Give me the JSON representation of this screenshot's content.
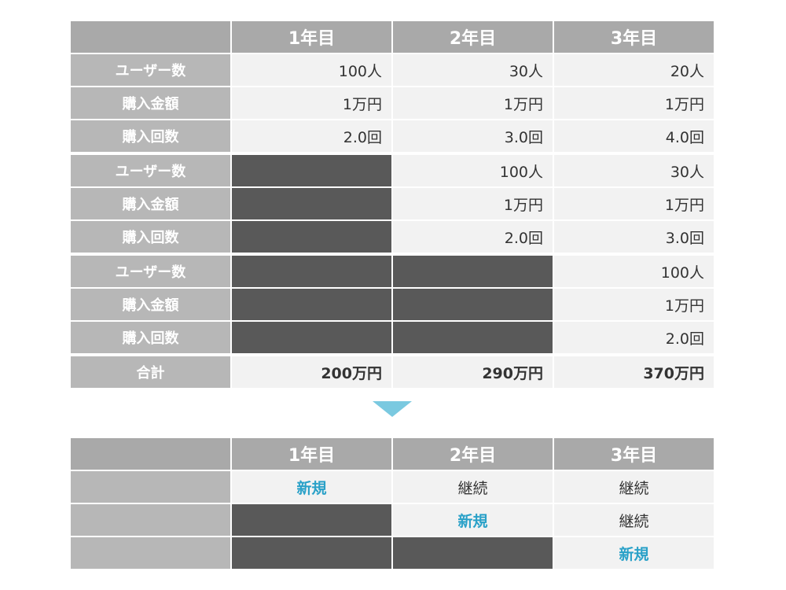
{
  "years": [
    "1年目",
    "2年目",
    "3年目"
  ],
  "labels": {
    "users": "ユーザー数",
    "amount": "購入金額",
    "count": "購入回数",
    "total": "合計"
  },
  "cohorts": [
    {
      "users": [
        "100人",
        "30人",
        "20人"
      ],
      "amount": [
        "1万円",
        "1万円",
        "1万円"
      ],
      "count": [
        "2.0回",
        "3.0回",
        "4.0回"
      ]
    },
    {
      "users": [
        "",
        "100人",
        "30人"
      ],
      "amount": [
        "",
        "1万円",
        "1万円"
      ],
      "count": [
        "",
        "2.0回",
        "3.0回"
      ]
    },
    {
      "users": [
        "",
        "",
        "100人"
      ],
      "amount": [
        "",
        "",
        "1万円"
      ],
      "count": [
        "",
        "",
        "2.0回"
      ]
    }
  ],
  "totals": [
    "200万円",
    "290万円",
    "370万円"
  ],
  "status": {
    "new": "新規",
    "continuing": "継続"
  },
  "colors": {
    "header": "#a9a9a9",
    "label": "#b7b7b7",
    "cell": "#f2f2f2",
    "empty": "#595959",
    "accent": "#2aa1c8",
    "arrow": "#7ac9e0"
  }
}
